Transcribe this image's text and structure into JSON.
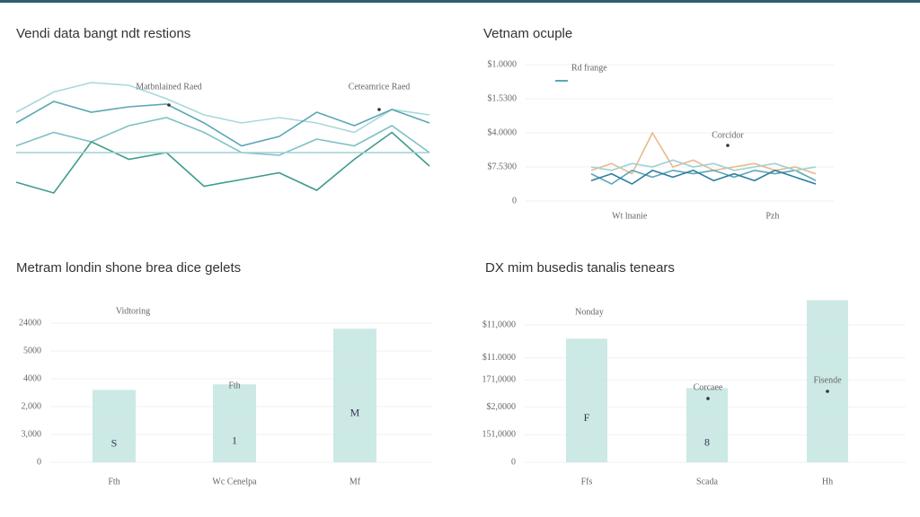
{
  "chart_data": [
    {
      "type": "line",
      "title": "Vendi data bangt ndt restions",
      "annotations": [
        "Matbnlained Raed",
        "Ceteamrice Raed"
      ],
      "categories": [
        null,
        null,
        null,
        null,
        null,
        null,
        null,
        null,
        null,
        null,
        null,
        null
      ],
      "ylim": [
        0,
        100
      ],
      "series": [
        {
          "color": "#a9d8dc",
          "values": [
            70,
            85,
            92,
            90,
            80,
            68,
            62,
            66,
            62,
            55,
            72,
            68
          ]
        },
        {
          "color": "#5aa7b4",
          "values": [
            62,
            78,
            70,
            74,
            76,
            62,
            45,
            52,
            70,
            60,
            72,
            62
          ]
        },
        {
          "color": "#7fc1c6",
          "values": [
            45,
            55,
            48,
            60,
            66,
            55,
            40,
            38,
            50,
            45,
            60,
            40
          ]
        },
        {
          "color": "#3f9c8c",
          "values": [
            18,
            10,
            48,
            35,
            40,
            15,
            20,
            25,
            12,
            35,
            55,
            30
          ]
        },
        {
          "color": "#9fd0d4",
          "values": [
            40,
            40,
            40,
            40,
            40,
            40,
            40,
            40,
            40,
            40,
            40,
            40
          ]
        }
      ]
    },
    {
      "type": "line",
      "title": "Vetnam ocuple",
      "legend": "Rd frange",
      "annotations": [
        "Corcidor"
      ],
      "categories": [
        null,
        "Wt lnanie",
        null,
        null,
        null,
        null,
        null,
        null,
        "Pzh",
        null,
        null,
        null
      ],
      "ylim": [
        0,
        4
      ],
      "yticks": [
        0,
        {
          "value": 1,
          "label": "$7.5300"
        },
        {
          "value": 2,
          "label": "$4.0000"
        },
        {
          "value": 3,
          "label": "$1.5300"
        },
        {
          "value": 4,
          "label": "$1.0000"
        }
      ],
      "series": [
        {
          "color": "#e8b98a",
          "values": [
            0.9,
            1.1,
            0.8,
            2.0,
            1.0,
            1.2,
            0.9,
            1.0,
            1.1,
            0.9,
            1.0,
            0.8
          ]
        },
        {
          "color": "#5aa7b4",
          "values": [
            0.8,
            0.5,
            0.9,
            0.7,
            0.9,
            0.8,
            0.9,
            0.7,
            0.9,
            0.8,
            0.9,
            0.6
          ]
        },
        {
          "color": "#2f7fa0",
          "values": [
            0.6,
            0.8,
            0.5,
            0.9,
            0.7,
            0.9,
            0.6,
            0.8,
            0.6,
            0.9,
            0.7,
            0.5
          ]
        },
        {
          "color": "#9fd0d4",
          "values": [
            1.0,
            0.9,
            1.1,
            1.0,
            1.2,
            1.0,
            1.1,
            0.9,
            1.0,
            1.1,
            0.9,
            1.0
          ]
        }
      ]
    },
    {
      "type": "bar",
      "title": "Metram londin shone brea dice gelets",
      "annotations": [
        "Vidtoring",
        "Fth"
      ],
      "categories": [
        "Fth",
        "Wc Cenelpa",
        "Mf"
      ],
      "values": [
        2.6,
        2.8,
        4.8
      ],
      "bar_labels": [
        "S",
        "1",
        "M"
      ],
      "color": "#bfe3df",
      "ylim": [
        0,
        5.5
      ],
      "yticks": [
        0,
        {
          "value": 1,
          "label": "3,000"
        },
        {
          "value": 2,
          "label": "2,000"
        },
        {
          "value": 3,
          "label": "4000"
        },
        {
          "value": 4,
          "label": "5000"
        },
        {
          "value": 5,
          "label": "24000"
        }
      ]
    },
    {
      "type": "bar",
      "title": "DX mim busedis tanalis tenears",
      "annotations": [
        "Nonday",
        "Corcaee",
        "Fisende"
      ],
      "categories": [
        "Ffs",
        "Scada",
        "Hh"
      ],
      "values": [
        4.5,
        2.7,
        5.9
      ],
      "bar_labels": [
        "F",
        "8",
        ""
      ],
      "color": "#bfe3df",
      "ylim": [
        0,
        6
      ],
      "yticks": [
        0,
        {
          "value": 1,
          "label": "151,0000"
        },
        {
          "value": 2,
          "label": "$2,0000"
        },
        {
          "value": 3,
          "label": "171,0000"
        },
        {
          "value": 3.8,
          "label": "$11.0000"
        },
        {
          "value": 5,
          "label": "$11,0000"
        }
      ]
    }
  ]
}
